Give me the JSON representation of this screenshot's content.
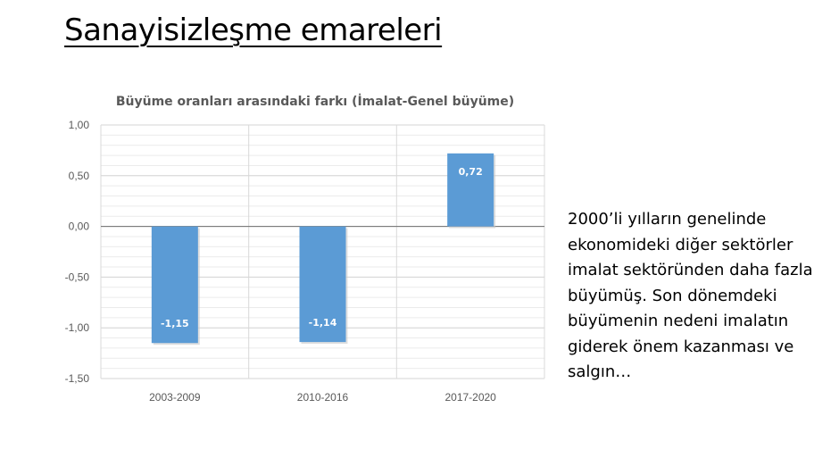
{
  "slide": {
    "title": "Sanayisizleşme emareleri",
    "text": "2000’li yılların genelinde ekonomideki diğer sektörler imalat sektöründen daha fazla büyümüş. Son dönemdeki büyümenin nedeni imalatın giderek önem kazanması ve salgın…"
  },
  "chart_data": {
    "type": "bar",
    "title": "Büyüme oranları arasındaki farkı (İmalat-Genel büyüme)",
    "categories": [
      "2003-2009",
      "2010-2016",
      "2017-2020"
    ],
    "values": [
      -1.15,
      -1.14,
      0.72
    ],
    "data_labels": [
      "-1,15",
      "-1,14",
      "0,72"
    ],
    "y_ticks": [
      "1,00",
      "0,50",
      "0,00",
      "-0,50",
      "-1,00",
      "-1,50"
    ],
    "ylim": [
      -1.5,
      1.0
    ],
    "grid": true,
    "legend": "none",
    "bar_color": "#5b9bd5"
  }
}
